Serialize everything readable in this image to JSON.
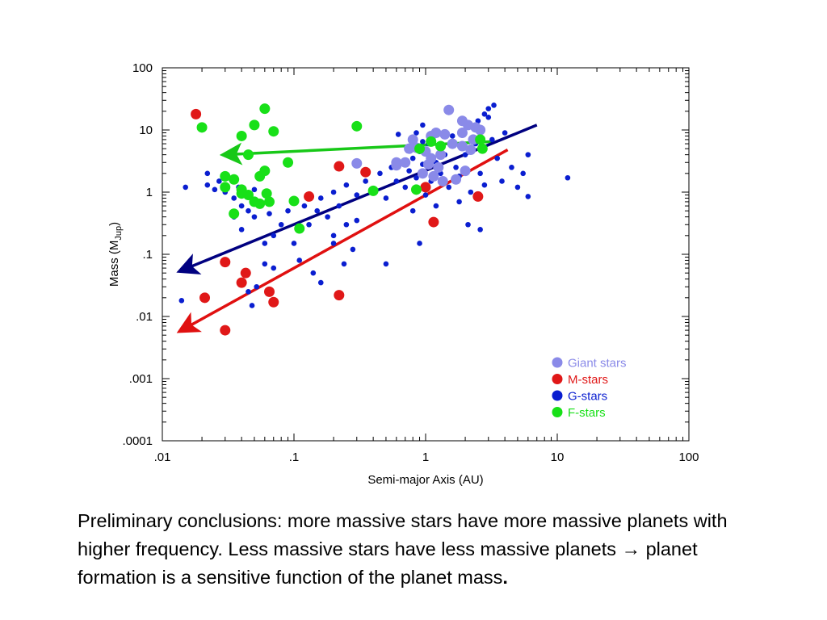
{
  "chart_data": {
    "type": "scatter",
    "x_scale": "log",
    "y_scale": "log",
    "xlim": [
      0.01,
      100
    ],
    "ylim": [
      0.0001,
      100
    ],
    "xlabel": "Semi-major Axis (AU)",
    "ylabel": {
      "main": "Mass (M",
      "sub": "Jup",
      "end": ")"
    },
    "x_ticks": [
      {
        "value": 0.01,
        "label": ".01"
      },
      {
        "value": 0.1,
        "label": ".1"
      },
      {
        "value": 1,
        "label": "1"
      },
      {
        "value": 10,
        "label": "10"
      },
      {
        "value": 100,
        "label": "100"
      }
    ],
    "y_ticks": [
      {
        "value": 100,
        "label": "100"
      },
      {
        "value": 10,
        "label": "10"
      },
      {
        "value": 1,
        "label": "1"
      },
      {
        "value": 0.1,
        "label": ".1"
      },
      {
        "value": 0.01,
        "label": ".01"
      },
      {
        "value": 0.001,
        "label": ".001"
      },
      {
        "value": 0.0001,
        "label": ".0001"
      }
    ],
    "legend_position": "bottom-right",
    "series": [
      {
        "name": "Giant stars",
        "color": "#8a8ae8",
        "marker": "large",
        "points": [
          [
            1.5,
            21
          ],
          [
            1.9,
            14
          ],
          [
            2.1,
            12
          ],
          [
            2.4,
            11
          ],
          [
            2.6,
            10
          ],
          [
            1.9,
            9
          ],
          [
            1.2,
            9
          ],
          [
            1.4,
            8.5
          ],
          [
            1.1,
            8
          ],
          [
            2.3,
            7
          ],
          [
            0.8,
            7
          ],
          [
            1.6,
            6
          ],
          [
            1.9,
            5.5
          ],
          [
            0.75,
            5
          ],
          [
            0.85,
            5.2
          ],
          [
            1.3,
            4
          ],
          [
            1.1,
            3.5
          ],
          [
            0.7,
            3
          ],
          [
            0.6,
            3
          ],
          [
            0.3,
            2.9
          ],
          [
            1.05,
            2.8
          ],
          [
            1.25,
            2.5
          ],
          [
            2.0,
            2.2
          ],
          [
            0.95,
            2
          ],
          [
            1.15,
            1.8
          ],
          [
            1.35,
            1.5
          ],
          [
            1.7,
            1.6
          ],
          [
            0.6,
            2.7
          ],
          [
            1.0,
            4.5
          ],
          [
            2.2,
            4.8
          ]
        ]
      },
      {
        "name": "M-stars",
        "color": "#e01818",
        "marker": "large",
        "points": [
          [
            0.018,
            18
          ],
          [
            0.22,
            2.6
          ],
          [
            0.35,
            2.1
          ],
          [
            0.13,
            0.85
          ],
          [
            1.0,
            1.2
          ],
          [
            1.15,
            0.33
          ],
          [
            2.5,
            0.85
          ],
          [
            0.03,
            0.075
          ],
          [
            0.04,
            0.035
          ],
          [
            0.043,
            0.05
          ],
          [
            0.021,
            0.02
          ],
          [
            0.065,
            0.025
          ],
          [
            0.07,
            0.017
          ],
          [
            0.22,
            0.022
          ],
          [
            0.03,
            0.006
          ]
        ]
      },
      {
        "name": "G-stars",
        "color": "#0a1ed0",
        "marker": "small",
        "points": [
          [
            0.015,
            1.2
          ],
          [
            0.022,
            2.0
          ],
          [
            0.022,
            1.3
          ],
          [
            0.025,
            1.1
          ],
          [
            0.027,
            1.5
          ],
          [
            0.03,
            1.0
          ],
          [
            0.032,
            1.7
          ],
          [
            0.035,
            0.8
          ],
          [
            0.038,
            1.2
          ],
          [
            0.04,
            0.6
          ],
          [
            0.042,
            0.9
          ],
          [
            0.045,
            0.5
          ],
          [
            0.048,
            0.7
          ],
          [
            0.05,
            1.1
          ],
          [
            0.05,
            0.4
          ],
          [
            0.055,
            0.6
          ],
          [
            0.06,
            0.9
          ],
          [
            0.065,
            0.45
          ],
          [
            0.08,
            0.3
          ],
          [
            0.09,
            0.5
          ],
          [
            0.07,
            0.2
          ],
          [
            0.1,
            0.15
          ],
          [
            0.12,
            0.6
          ],
          [
            0.13,
            0.3
          ],
          [
            0.15,
            0.5
          ],
          [
            0.16,
            0.8
          ],
          [
            0.18,
            0.4
          ],
          [
            0.2,
            1.0
          ],
          [
            0.22,
            0.6
          ],
          [
            0.25,
            1.3
          ],
          [
            0.3,
            0.9
          ],
          [
            0.35,
            1.5
          ],
          [
            0.4,
            1.1
          ],
          [
            0.45,
            2.0
          ],
          [
            0.5,
            0.8
          ],
          [
            0.55,
            2.5
          ],
          [
            0.6,
            1.5
          ],
          [
            0.65,
            3.0
          ],
          [
            0.7,
            1.2
          ],
          [
            0.75,
            2.2
          ],
          [
            0.8,
            3.5
          ],
          [
            0.85,
            1.7
          ],
          [
            0.9,
            4.5
          ],
          [
            0.95,
            2.8
          ],
          [
            1.0,
            0.9
          ],
          [
            1.05,
            6.0
          ],
          [
            1.1,
            1.5
          ],
          [
            1.2,
            3.0
          ],
          [
            1.3,
            2.0
          ],
          [
            1.4,
            4.0
          ],
          [
            1.5,
            1.2
          ],
          [
            1.6,
            8.0
          ],
          [
            1.7,
            2.5
          ],
          [
            1.8,
            1.8
          ],
          [
            2.0,
            4.0
          ],
          [
            2.2,
            1.0
          ],
          [
            2.4,
            6.0
          ],
          [
            2.6,
            2.0
          ],
          [
            2.8,
            1.3
          ],
          [
            3.0,
            16
          ],
          [
            3.2,
            7
          ],
          [
            3.5,
            3.5
          ],
          [
            3.8,
            1.5
          ],
          [
            4.0,
            9.0
          ],
          [
            4.5,
            2.5
          ],
          [
            5.0,
            1.2
          ],
          [
            5.5,
            2.0
          ],
          [
            6.0,
            0.85
          ],
          [
            6.0,
            4.0
          ],
          [
            12,
            1.7
          ],
          [
            3.0,
            22
          ],
          [
            3.3,
            25
          ],
          [
            2.8,
            18
          ],
          [
            2.5,
            14
          ],
          [
            0.8,
            0.5
          ],
          [
            0.9,
            0.15
          ],
          [
            1.2,
            0.6
          ],
          [
            0.5,
            0.07
          ],
          [
            0.3,
            0.35
          ],
          [
            0.28,
            0.12
          ],
          [
            0.24,
            0.07
          ],
          [
            0.2,
            0.2
          ],
          [
            0.16,
            0.035
          ],
          [
            0.14,
            0.05
          ],
          [
            0.11,
            0.08
          ],
          [
            0.07,
            0.06
          ],
          [
            0.06,
            0.07
          ],
          [
            0.052,
            0.03
          ],
          [
            0.048,
            0.015
          ],
          [
            0.045,
            0.025
          ],
          [
            0.014,
            0.018
          ],
          [
            0.035,
            0.4
          ],
          [
            0.04,
            0.25
          ],
          [
            0.06,
            0.15
          ],
          [
            0.2,
            0.15
          ],
          [
            0.25,
            0.3
          ],
          [
            2.1,
            0.3
          ],
          [
            2.6,
            0.25
          ],
          [
            1.8,
            0.7
          ],
          [
            0.95,
            6.5
          ],
          [
            0.85,
            9
          ],
          [
            0.95,
            12
          ],
          [
            0.62,
            8.5
          ]
        ]
      },
      {
        "name": "F-stars",
        "color": "#18e018",
        "marker": "large",
        "points": [
          [
            0.02,
            11
          ],
          [
            0.04,
            8
          ],
          [
            0.05,
            12
          ],
          [
            0.06,
            22
          ],
          [
            0.07,
            9.5
          ],
          [
            0.045,
            4
          ],
          [
            0.09,
            3
          ],
          [
            0.03,
            1.8
          ],
          [
            0.035,
            1.6
          ],
          [
            0.04,
            1.1
          ],
          [
            0.045,
            0.9
          ],
          [
            0.05,
            0.7
          ],
          [
            0.055,
            1.8
          ],
          [
            0.06,
            2.2
          ],
          [
            0.062,
            0.95
          ],
          [
            0.055,
            0.65
          ],
          [
            0.1,
            0.72
          ],
          [
            0.11,
            0.26
          ],
          [
            0.3,
            11.5
          ],
          [
            0.4,
            1.05
          ],
          [
            0.85,
            1.1
          ],
          [
            0.9,
            5
          ],
          [
            1.1,
            6.5
          ],
          [
            1.3,
            5.5
          ],
          [
            2.6,
            7
          ],
          [
            2.7,
            5
          ],
          [
            0.035,
            0.45
          ],
          [
            0.04,
            0.95
          ],
          [
            0.03,
            1.2
          ],
          [
            0.065,
            0.7
          ]
        ]
      }
    ],
    "trend_lines": [
      {
        "series": "F-stars",
        "color": "#18c818",
        "from": [
          3.2,
          6.5
        ],
        "to": [
          0.03,
          4.0
        ],
        "arrow": "to"
      },
      {
        "series": "G-stars",
        "color": "#000080",
        "from": [
          7.0,
          12.0
        ],
        "to": [
          0.014,
          0.055
        ],
        "arrow": "to"
      },
      {
        "series": "M-stars",
        "color": "#e01010",
        "from": [
          4.2,
          4.8
        ],
        "to": [
          0.014,
          0.006
        ],
        "arrow": "to"
      }
    ]
  },
  "caption": {
    "text": "Preliminary conclusions: more massive stars have more massive planets with higher frequency. Less massive stars have less massive planets → planet formation is a sensitive function of the planet mass",
    "end": "."
  }
}
